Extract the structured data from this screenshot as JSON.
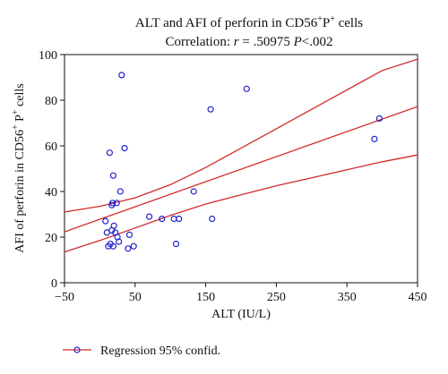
{
  "chart_data": {
    "type": "scatter",
    "title": "ALT and AFI of perforin in CD56",
    "title_sup": [
      "+",
      "+"
    ],
    "title_mid": "P",
    "title_end": " cells",
    "subtitle_prefix": "Correlation: ",
    "subtitle_r": "r",
    "subtitle_value": " = .50975 ",
    "subtitle_p": "P",
    "subtitle_end": "<.002",
    "xlabel": "ALT (IU/L)",
    "ylabel_parts": [
      "AFI of perforin in CD56",
      "+",
      " P",
      "+",
      " cells"
    ],
    "xlim": [
      -50,
      450
    ],
    "ylim": [
      0,
      100
    ],
    "xticks": [
      -50,
      50,
      150,
      250,
      350,
      450
    ],
    "xtick_labels": [
      "−50",
      "50",
      "150",
      "250",
      "350",
      "450"
    ],
    "yticks": [
      0,
      20,
      40,
      60,
      80,
      100
    ],
    "grid": false,
    "points": [
      {
        "x": 8,
        "y": 27
      },
      {
        "x": 10,
        "y": 22
      },
      {
        "x": 12,
        "y": 16
      },
      {
        "x": 14,
        "y": 57
      },
      {
        "x": 15,
        "y": 17
      },
      {
        "x": 17,
        "y": 23
      },
      {
        "x": 17,
        "y": 34
      },
      {
        "x": 18,
        "y": 35
      },
      {
        "x": 19,
        "y": 47
      },
      {
        "x": 19,
        "y": 16
      },
      {
        "x": 20,
        "y": 25
      },
      {
        "x": 22,
        "y": 22
      },
      {
        "x": 24,
        "y": 35
      },
      {
        "x": 25,
        "y": 20
      },
      {
        "x": 27,
        "y": 18
      },
      {
        "x": 29,
        "y": 40
      },
      {
        "x": 31,
        "y": 91
      },
      {
        "x": 35,
        "y": 59
      },
      {
        "x": 40,
        "y": 15
      },
      {
        "x": 42,
        "y": 21
      },
      {
        "x": 48,
        "y": 16
      },
      {
        "x": 70,
        "y": 29
      },
      {
        "x": 88,
        "y": 28
      },
      {
        "x": 105,
        "y": 28
      },
      {
        "x": 108,
        "y": 17
      },
      {
        "x": 112,
        "y": 28
      },
      {
        "x": 133,
        "y": 40
      },
      {
        "x": 157,
        "y": 76
      },
      {
        "x": 159,
        "y": 28
      },
      {
        "x": 208,
        "y": 85
      },
      {
        "x": 389,
        "y": 63
      },
      {
        "x": 396,
        "y": 72
      }
    ],
    "regression": [
      [
        -50,
        22.3
      ],
      [
        450,
        77.2
      ]
    ],
    "ci_upper": [
      [
        -50,
        31
      ],
      [
        0,
        33.5
      ],
      [
        50,
        37.2
      ],
      [
        100,
        43
      ],
      [
        150,
        50.5
      ],
      [
        200,
        59
      ],
      [
        250,
        67.5
      ],
      [
        300,
        76
      ],
      [
        350,
        84.5
      ],
      [
        400,
        93
      ],
      [
        450,
        98
      ]
    ],
    "ci_lower": [
      [
        -50,
        13.5
      ],
      [
        0,
        18.5
      ],
      [
        50,
        24
      ],
      [
        100,
        29.5
      ],
      [
        150,
        34.5
      ],
      [
        200,
        38.5
      ],
      [
        250,
        42.5
      ],
      [
        300,
        46
      ],
      [
        350,
        49.5
      ],
      [
        400,
        53
      ],
      [
        450,
        56
      ]
    ],
    "legend": "Regression 95% confid.",
    "legend_position": "bottom-left",
    "colors": {
      "points": "#2222cc",
      "lines": "#d42a2a",
      "axis": "#111111"
    }
  }
}
